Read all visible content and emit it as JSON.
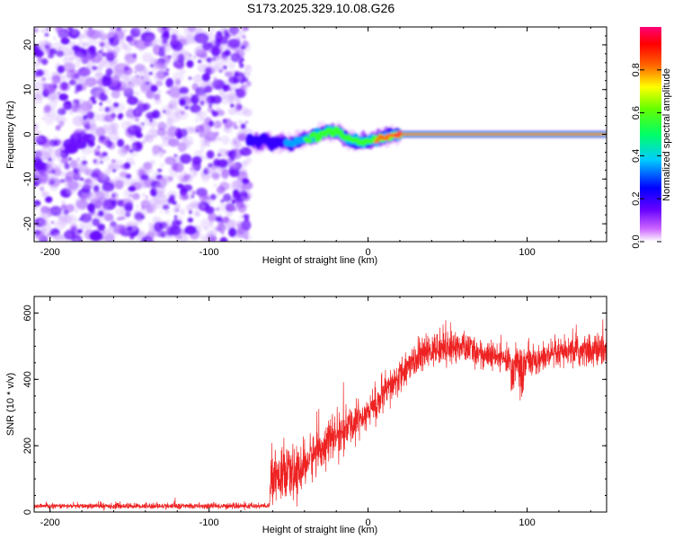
{
  "title": "S173.2025.329.10.08.G26",
  "colors": {
    "signal_line": "#ee2222",
    "scatter_purple": "#8833ff",
    "frame": "#000000"
  },
  "chart_data": [
    {
      "type": "heatmap",
      "name": "spectrogram",
      "xlabel": "Height of straight line (km)",
      "ylabel": "Frequency (Hz)",
      "xlim": [
        -210,
        150
      ],
      "ylim": [
        -24,
        24
      ],
      "xticks": [
        -200,
        -100,
        0,
        100
      ],
      "yticks": [
        -20,
        -10,
        0,
        10,
        20
      ],
      "colorbar": {
        "label": "Normalized spectral amplitude",
        "range": [
          0.0,
          1.0
        ],
        "ticks": [
          "0.0",
          "0.2",
          "0.4",
          "0.6",
          "0.8"
        ],
        "tick_values": [
          0.0,
          0.2,
          0.4,
          0.6,
          0.8
        ],
        "colormap": [
          "#ffffff",
          "#cc66ff",
          "#6600ff",
          "#0000ff",
          "#00ccff",
          "#00ff66",
          "#66ff00",
          "#ffff00",
          "#ff6600",
          "#ff0000",
          "#ff0077"
        ]
      },
      "noise_region": {
        "x_range": [
          -210,
          -75
        ],
        "description_level": 0.1
      },
      "signal_track": {
        "x": [
          -75,
          -70,
          -65,
          -60,
          -55,
          -50,
          -45,
          -40,
          -35,
          -30,
          -25,
          -20,
          -15,
          -10,
          -5,
          0,
          5,
          10,
          15,
          20,
          150
        ],
        "freq": [
          -1.5,
          -1.8,
          -1.2,
          -2.0,
          -1.5,
          -2.2,
          -1.6,
          -1.0,
          -0.8,
          0.2,
          0.9,
          0.5,
          -0.5,
          -1.5,
          -1.8,
          -1.5,
          -1.2,
          -0.6,
          -0.2,
          0.0,
          0.0
        ],
        "amplitude": [
          0.25,
          0.3,
          0.3,
          0.35,
          0.35,
          0.4,
          0.45,
          0.55,
          0.6,
          0.6,
          0.55,
          0.6,
          0.55,
          0.6,
          0.7,
          0.75,
          0.8,
          0.85,
          0.95,
          1.0,
          1.0
        ]
      }
    },
    {
      "type": "line",
      "name": "snr",
      "xlabel": "Height of straight line (km)",
      "ylabel": "SNR (10 * v/v)",
      "xlim": [
        -210,
        150
      ],
      "ylim": [
        0,
        650
      ],
      "xticks": [
        -200,
        -100,
        0,
        100
      ],
      "yticks": [
        0,
        200,
        400,
        600
      ],
      "series": [
        {
          "name": "SNR",
          "envelope_x": [
            -210,
            -150,
            -100,
            -62,
            -61,
            -55,
            -45,
            -35,
            -25,
            -15,
            -5,
            5,
            15,
            25,
            35,
            45,
            55,
            65,
            75,
            85,
            95,
            105,
            115,
            125,
            135,
            150
          ],
          "envelope_mean": [
            18,
            18,
            18,
            18,
            120,
            110,
            115,
            170,
            215,
            245,
            285,
            325,
            380,
            440,
            475,
            495,
            500,
            490,
            470,
            460,
            455,
            460,
            470,
            480,
            485,
            490
          ],
          "envelope_spread": [
            6,
            8,
            8,
            8,
            70,
            70,
            65,
            60,
            55,
            55,
            50,
            50,
            50,
            45,
            45,
            45,
            45,
            40,
            40,
            40,
            40,
            40,
            40,
            40,
            45,
            45
          ]
        }
      ]
    }
  ]
}
